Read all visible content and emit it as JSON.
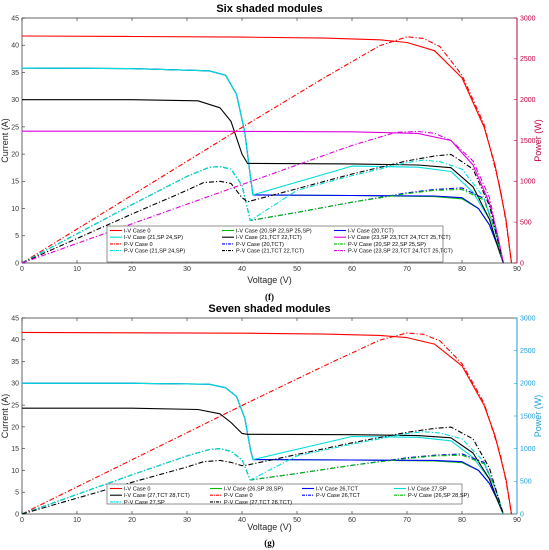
{
  "chart_data": [
    {
      "type": "line",
      "title": "Six shaded modules",
      "subfigure_label": "(f)",
      "xlabel": "Voltage (V)",
      "ylabel": "Current (A)",
      "y2label": "Power (W)",
      "y2_color": "#c0003c",
      "xlim": [
        0,
        90
      ],
      "ylim": [
        0,
        45
      ],
      "y2lim": [
        0,
        3000
      ],
      "xticks": [
        "0",
        "10",
        "20",
        "30",
        "40",
        "50",
        "60",
        "70",
        "80",
        "90"
      ],
      "yticks": [
        "0",
        "5",
        "10",
        "15",
        "20",
        "25",
        "30",
        "35",
        "40",
        "45"
      ],
      "y2ticks": [
        "0",
        "500",
        "1000",
        "1500",
        "2000",
        "2500",
        "3000"
      ],
      "legend_position": "bottom-center",
      "legend_columns": 3,
      "series": [
        {
          "name": "I-V Case 0",
          "axis": "left",
          "color": "#ff0000",
          "dash": "solid",
          "x": [
            0,
            20,
            40,
            55,
            65,
            70,
            75,
            80,
            84,
            86,
            88,
            89
          ],
          "y": [
            41.7,
            41.6,
            41.5,
            41.3,
            41,
            40.5,
            39,
            34,
            25,
            18,
            8,
            0
          ]
        },
        {
          "name": "I-V Case (20,SP 22,SP 25,SP)",
          "axis": "left",
          "color": "#00c000",
          "dash": "solid",
          "x": [
            0,
            20,
            34,
            37,
            39,
            40.5,
            41.5,
            42,
            60,
            75,
            80,
            83,
            85,
            86.5,
            87.5
          ],
          "y": [
            35.8,
            35.7,
            35.3,
            34.5,
            31,
            24,
            16,
            12.5,
            12.4,
            12.2,
            11.8,
            10,
            7,
            3,
            0
          ]
        },
        {
          "name": "I-V Case (20,TCT)",
          "axis": "left",
          "color": "#0000ff",
          "dash": "solid",
          "x": [
            0,
            20,
            34,
            37,
            39,
            40.5,
            41.5,
            42,
            60,
            75,
            80,
            83,
            85,
            86.5,
            87.5
          ],
          "y": [
            35.8,
            35.7,
            35.3,
            34.5,
            31,
            24,
            16,
            12.5,
            12.4,
            12.3,
            12,
            10,
            7,
            3,
            0
          ]
        },
        {
          "name": "I-V Case (21,SP 24,SP)",
          "axis": "left",
          "color": "#00dddd",
          "dash": "solid",
          "x": [
            0,
            20,
            34,
            37,
            39,
            40.5,
            41.5,
            42,
            60,
            72,
            78,
            82,
            85,
            86.5,
            87.5
          ],
          "y": [
            35.8,
            35.7,
            35.3,
            34.5,
            31,
            24,
            16,
            12.5,
            17.8,
            17.6,
            16.8,
            13,
            8,
            3,
            0
          ]
        },
        {
          "name": "I-V Case (21,TCT 22,TCT)",
          "axis": "left",
          "color": "#000000",
          "dash": "solid",
          "x": [
            0,
            20,
            32,
            36,
            38,
            40,
            41,
            60,
            72,
            78,
            82,
            85,
            86.5,
            87.5
          ],
          "y": [
            30,
            30,
            29.8,
            28.5,
            26,
            20,
            18.3,
            18.2,
            18,
            17.5,
            14,
            8,
            3,
            0
          ]
        },
        {
          "name": "I-V Case (23,SP 23,TCT 24,TCT 25,TCT)",
          "axis": "left",
          "color": "#dd00dd",
          "dash": "solid",
          "x": [
            0,
            30,
            60,
            72,
            78,
            82,
            85,
            86.5,
            87.5
          ],
          "y": [
            24.2,
            24.2,
            24.1,
            23.8,
            22.5,
            18,
            11,
            5,
            0
          ]
        },
        {
          "name": "P-V Case 0",
          "axis": "right",
          "color": "#ff0000",
          "dash": "dashdot",
          "x": [
            0,
            20,
            40,
            55,
            65,
            70,
            73,
            76,
            80,
            84,
            87,
            88,
            89
          ],
          "y": [
            0,
            830,
            1660,
            2270,
            2660,
            2770,
            2750,
            2650,
            2300,
            1700,
            900,
            500,
            0
          ]
        },
        {
          "name": "P-V Case (20,TCT)",
          "axis": "right",
          "color": "#0000ff",
          "dash": "dashdot",
          "x": [
            0,
            20,
            30,
            34,
            36,
            38,
            40,
            41.5,
            50,
            60,
            70,
            75,
            80,
            84,
            86,
            87.5
          ],
          "y": [
            0,
            715,
            1060,
            1170,
            1180,
            1150,
            950,
            520,
            620,
            745,
            860,
            900,
            920,
            790,
            400,
            0
          ]
        },
        {
          "name": "P-V Case (20,SP 22,SP 25,SP)",
          "axis": "right",
          "color": "#00c000",
          "dash": "dashdot",
          "x": [
            0,
            20,
            30,
            34,
            36,
            38,
            40,
            41.5,
            50,
            60,
            70,
            75,
            80,
            84,
            86,
            87.5
          ],
          "y": [
            0,
            715,
            1060,
            1170,
            1180,
            1150,
            950,
            520,
            620,
            745,
            850,
            890,
            900,
            770,
            400,
            0
          ]
        },
        {
          "name": "P-V Case (21,SP 24,SP)",
          "axis": "right",
          "color": "#00dddd",
          "dash": "dashdot",
          "x": [
            0,
            20,
            30,
            34,
            36,
            38,
            40,
            41.5,
            50,
            60,
            70,
            73,
            76,
            80,
            84,
            86,
            87.5
          ],
          "y": [
            0,
            715,
            1060,
            1170,
            1180,
            1150,
            950,
            520,
            890,
            1070,
            1230,
            1260,
            1240,
            1150,
            800,
            400,
            0
          ]
        },
        {
          "name": "P-V Case (21,TCT 22,TCT)",
          "axis": "right",
          "color": "#000000",
          "dash": "dashdot",
          "x": [
            0,
            20,
            30,
            33,
            36,
            38,
            40,
            41,
            50,
            60,
            70,
            75,
            78,
            82,
            85,
            87.5
          ],
          "y": [
            0,
            600,
            890,
            985,
            1000,
            975,
            800,
            750,
            910,
            1090,
            1250,
            1310,
            1330,
            1150,
            700,
            0
          ]
        },
        {
          "name": "P-V Case (23,SP 23,TCT 24,TCT 25,TCT)",
          "axis": "right",
          "color": "#dd00dd",
          "dash": "dashdot",
          "x": [
            0,
            20,
            40,
            60,
            68,
            72,
            75,
            78,
            82,
            85,
            87.5
          ],
          "y": [
            0,
            480,
            960,
            1440,
            1600,
            1610,
            1590,
            1500,
            1250,
            800,
            0
          ]
        }
      ]
    },
    {
      "type": "line",
      "title": "Seven shaded modules",
      "subfigure_label": "(g)",
      "xlabel": "Voltage (V)",
      "ylabel": "Current (A)",
      "y2label": "Power (W)",
      "y2_color": "#1f9fd8",
      "xlim": [
        0,
        90
      ],
      "ylim": [
        0,
        45
      ],
      "y2lim": [
        0,
        3000
      ],
      "xticks": [
        "0",
        "10",
        "20",
        "30",
        "40",
        "50",
        "60",
        "70",
        "80",
        "90"
      ],
      "yticks": [
        "0",
        "5",
        "10",
        "15",
        "20",
        "25",
        "30",
        "35",
        "40",
        "45"
      ],
      "y2ticks": [
        "0",
        "500",
        "1000",
        "1500",
        "2000",
        "2500",
        "3000"
      ],
      "legend_position": "bottom-center",
      "legend_columns": 4,
      "series": [
        {
          "name": "I-V Case 0",
          "axis": "left",
          "color": "#ff0000",
          "dash": "solid",
          "x": [
            0,
            20,
            40,
            55,
            65,
            70,
            75,
            80,
            84,
            86,
            88,
            89
          ],
          "y": [
            41.7,
            41.6,
            41.5,
            41.3,
            41,
            40.5,
            39,
            34,
            25,
            18,
            8,
            0
          ]
        },
        {
          "name": "I-V Case (26,SP 28,SP)",
          "axis": "left",
          "color": "#00c000",
          "dash": "solid",
          "x": [
            0,
            20,
            34,
            37,
            39,
            40.5,
            41.5,
            42,
            60,
            75,
            80,
            83,
            85,
            86.5,
            87.5
          ],
          "y": [
            30,
            30,
            29.8,
            29,
            27,
            22,
            15,
            12.5,
            12.4,
            12.2,
            11.8,
            10,
            7,
            3,
            0
          ]
        },
        {
          "name": "I-V Case 26,TCT",
          "axis": "left",
          "color": "#0000ff",
          "dash": "solid",
          "x": [
            0,
            20,
            34,
            37,
            39,
            40.5,
            41.5,
            42,
            60,
            75,
            80,
            83,
            85,
            86.5,
            87.5
          ],
          "y": [
            30,
            30,
            29.8,
            29,
            27,
            22,
            15,
            12.5,
            12.4,
            12.3,
            12,
            10,
            7,
            3,
            0
          ]
        },
        {
          "name": "I-V Case 27,SP",
          "axis": "left",
          "color": "#00dddd",
          "dash": "solid",
          "x": [
            0,
            20,
            34,
            37,
            39,
            40.5,
            41.5,
            42,
            60,
            72,
            78,
            82,
            85,
            86.5,
            87.5
          ],
          "y": [
            30,
            30,
            29.8,
            29,
            27,
            22,
            15,
            12.5,
            17.8,
            17.6,
            16.8,
            13,
            8,
            3,
            0
          ]
        },
        {
          "name": "I-V Case (27,TCT 28,TCT)",
          "axis": "left",
          "color": "#000000",
          "dash": "solid",
          "x": [
            0,
            20,
            32,
            36,
            38,
            40,
            41,
            60,
            72,
            78,
            82,
            85,
            86.5,
            87.5
          ],
          "y": [
            24.3,
            24.3,
            24,
            23,
            21,
            18.5,
            18.3,
            18.2,
            18,
            17.5,
            14,
            8,
            3,
            0
          ]
        },
        {
          "name": "P-V Case 0",
          "axis": "right",
          "color": "#ff0000",
          "dash": "dashdot",
          "x": [
            0,
            20,
            40,
            55,
            65,
            70,
            73,
            76,
            80,
            84,
            87,
            88,
            89
          ],
          "y": [
            0,
            830,
            1660,
            2270,
            2660,
            2770,
            2750,
            2650,
            2300,
            1700,
            900,
            500,
            0
          ]
        },
        {
          "name": "P-V Case 26,TCT",
          "axis": "right",
          "color": "#0000ff",
          "dash": "dashdot",
          "x": [
            0,
            20,
            30,
            34,
            36,
            38,
            40,
            41.5,
            50,
            60,
            70,
            75,
            80,
            84,
            86,
            87.5
          ],
          "y": [
            0,
            600,
            890,
            985,
            1000,
            960,
            830,
            520,
            620,
            745,
            860,
            900,
            920,
            790,
            400,
            0
          ]
        },
        {
          "name": "P-V Case (26,SP 28,SP)",
          "axis": "right",
          "color": "#00c000",
          "dash": "dashdot",
          "x": [
            0,
            20,
            30,
            34,
            36,
            38,
            40,
            41.5,
            50,
            60,
            70,
            75,
            80,
            84,
            86,
            87.5
          ],
          "y": [
            0,
            600,
            890,
            985,
            1000,
            960,
            830,
            520,
            620,
            745,
            850,
            890,
            900,
            770,
            400,
            0
          ]
        },
        {
          "name": "P-V Case 27,SP",
          "axis": "right",
          "color": "#00dddd",
          "dash": "dashdot",
          "x": [
            0,
            20,
            30,
            34,
            36,
            38,
            40,
            41.5,
            50,
            60,
            70,
            73,
            76,
            80,
            84,
            86,
            87.5
          ],
          "y": [
            0,
            600,
            890,
            985,
            1000,
            960,
            830,
            520,
            890,
            1070,
            1230,
            1260,
            1240,
            1150,
            800,
            400,
            0
          ]
        },
        {
          "name": "P-V Case (27,TCT 28,TCT)",
          "axis": "right",
          "color": "#000000",
          "dash": "dashdot",
          "x": [
            0,
            20,
            30,
            33,
            36,
            38,
            40,
            41,
            50,
            60,
            70,
            75,
            78,
            82,
            85,
            87.5
          ],
          "y": [
            0,
            485,
            720,
            800,
            820,
            790,
            740,
            750,
            910,
            1090,
            1250,
            1310,
            1330,
            1150,
            700,
            0
          ]
        }
      ]
    }
  ]
}
